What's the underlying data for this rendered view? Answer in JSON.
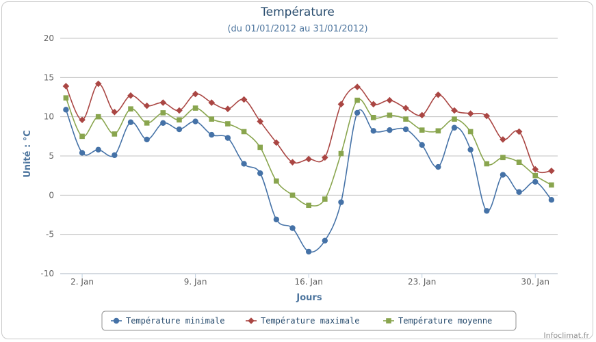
{
  "chart_data": {
    "type": "line",
    "title": "Température",
    "subtitle": "(du 01/01/2012 au 31/01/2012)",
    "xlabel": "Jours",
    "ylabel": "Unité : °C",
    "xlim": [
      1,
      31
    ],
    "ylim": [
      -10,
      20
    ],
    "y_ticks": [
      -10,
      -5,
      0,
      5,
      10,
      15,
      20
    ],
    "x_ticks": [
      {
        "day": 2,
        "label": "2. Jan"
      },
      {
        "day": 9,
        "label": "9. Jan"
      },
      {
        "day": 16,
        "label": "16. Jan"
      },
      {
        "day": 23,
        "label": "23. Jan"
      },
      {
        "day": 30,
        "label": "30. Jan"
      }
    ],
    "x": [
      1,
      2,
      3,
      4,
      5,
      6,
      7,
      8,
      9,
      10,
      11,
      12,
      13,
      14,
      15,
      16,
      17,
      18,
      19,
      20,
      21,
      22,
      23,
      24,
      25,
      26,
      27,
      28,
      29,
      30,
      31
    ],
    "grid": true,
    "legend_position": "bottom-center",
    "series": [
      {
        "name": "Température minimale",
        "color": "#4572a7",
        "marker": "circle",
        "values": [
          10.9,
          5.4,
          5.8,
          5.1,
          9.3,
          7.1,
          9.2,
          8.4,
          9.4,
          7.7,
          7.3,
          4.0,
          2.8,
          -3.1,
          -4.2,
          -7.2,
          -5.8,
          -0.9,
          10.5,
          8.2,
          8.3,
          8.4,
          6.4,
          3.6,
          8.6,
          5.8,
          -2.0,
          2.6,
          0.4,
          1.7,
          -0.6
        ]
      },
      {
        "name": "Température maximale",
        "color": "#aa4643",
        "marker": "diamond",
        "values": [
          13.9,
          9.6,
          14.2,
          10.6,
          12.7,
          11.4,
          11.8,
          10.8,
          12.9,
          11.8,
          11.0,
          12.2,
          9.4,
          6.7,
          4.2,
          4.6,
          4.8,
          11.6,
          13.8,
          11.6,
          12.1,
          11.1,
          10.2,
          12.8,
          10.8,
          10.4,
          10.1,
          7.1,
          8.1,
          3.3,
          3.1
        ]
      },
      {
        "name": "Température moyenne",
        "color": "#89a54e",
        "marker": "square",
        "values": [
          12.4,
          7.5,
          10.0,
          7.8,
          11.0,
          9.2,
          10.5,
          9.6,
          11.1,
          9.7,
          9.1,
          8.1,
          6.1,
          1.8,
          0.0,
          -1.3,
          -0.5,
          5.3,
          12.1,
          9.9,
          10.2,
          9.7,
          8.3,
          8.2,
          9.7,
          8.1,
          4.0,
          4.8,
          4.2,
          2.5,
          1.3
        ]
      }
    ]
  },
  "credit": "Infoclimat.fr"
}
